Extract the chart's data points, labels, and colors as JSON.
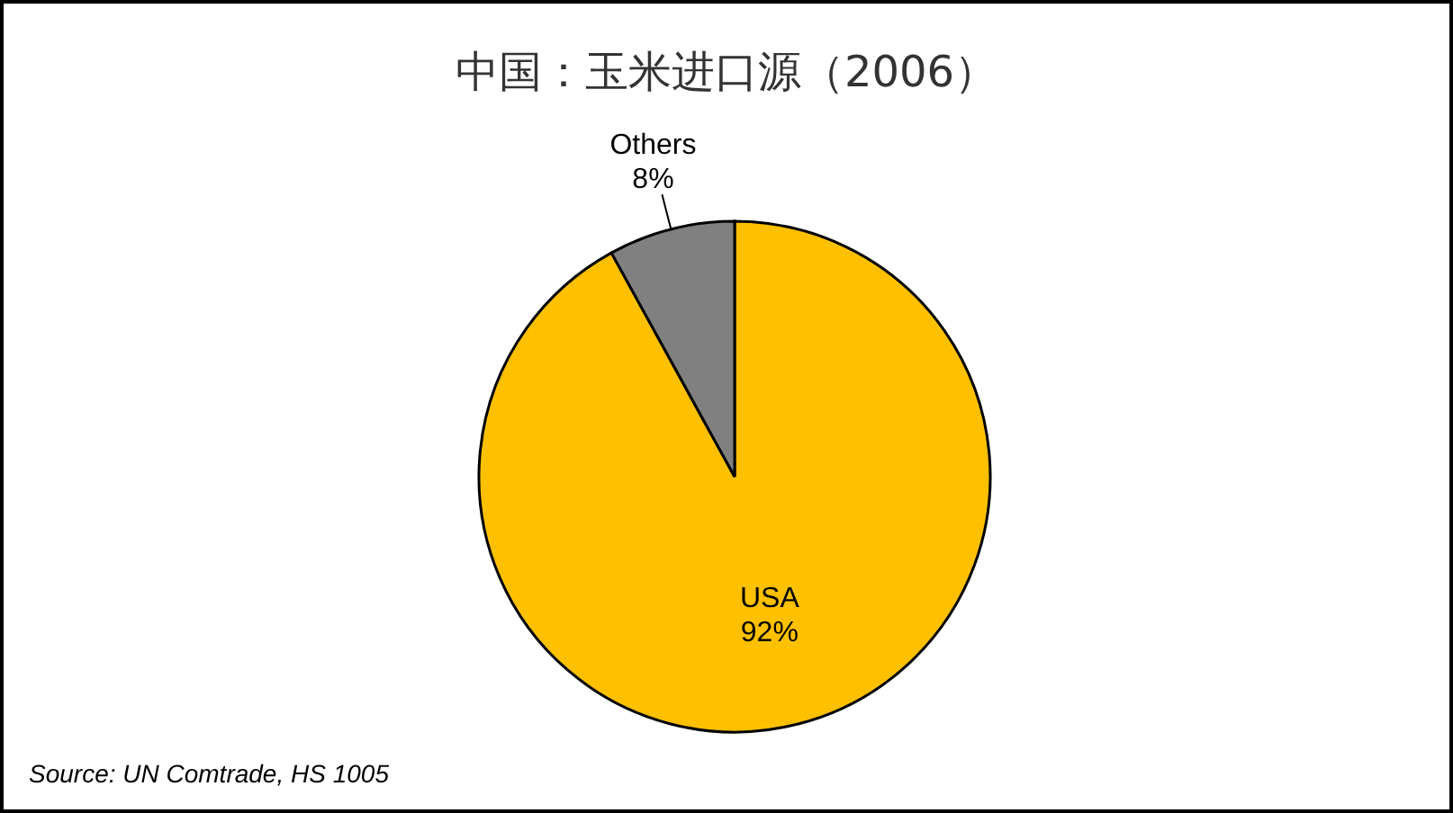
{
  "chart_data": {
    "type": "pie",
    "title": "中国：玉米进口源（2006）",
    "categories": [
      "USA",
      "Others"
    ],
    "values": [
      92,
      8
    ],
    "value_labels": [
      "92%",
      "8%"
    ],
    "colors": [
      "#ffc000",
      "#808080"
    ],
    "annotations": [
      "Source: UN Comtrade, HS 1005"
    ]
  }
}
